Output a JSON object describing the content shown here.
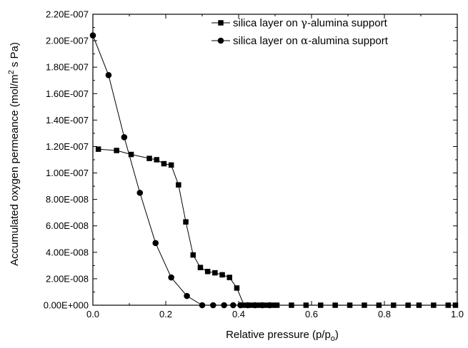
{
  "chart_data": {
    "type": "line",
    "xlabel": "Relative pressure (p/p",
    "xlabel_sub": "o",
    "xlabel_close": ")",
    "ylabel": "Accumulated oxygen permeance (mol/m",
    "ylabel_sup": "2",
    "ylabel_tail": " s Pa)",
    "xlim": [
      0.0,
      1.0
    ],
    "ylim": [
      0.0,
      2.2e-07
    ],
    "x_ticks": [
      {
        "v": 0.0,
        "label": "0.0"
      },
      {
        "v": 0.2,
        "label": "0.2"
      },
      {
        "v": 0.4,
        "label": "0.4"
      },
      {
        "v": 0.6,
        "label": "0.6"
      },
      {
        "v": 0.8,
        "label": "0.8"
      },
      {
        "v": 1.0,
        "label": "1.0"
      }
    ],
    "y_ticks": [
      {
        "v": 0.0,
        "label": "0.00E+000"
      },
      {
        "v": 2e-08,
        "label": "2.00E-008"
      },
      {
        "v": 4e-08,
        "label": "4.00E-008"
      },
      {
        "v": 6e-08,
        "label": "6.00E-008"
      },
      {
        "v": 8e-08,
        "label": "8.00E-008"
      },
      {
        "v": 1e-07,
        "label": "1.00E-007"
      },
      {
        "v": 1.2e-07,
        "label": "1.20E-007"
      },
      {
        "v": 1.4e-07,
        "label": "1.40E-007"
      },
      {
        "v": 1.6e-07,
        "label": "1.60E-007"
      },
      {
        "v": 1.8e-07,
        "label": "1.80E-007"
      },
      {
        "v": 2e-07,
        "label": "2.00E-007"
      },
      {
        "v": 2.2e-07,
        "label": "2.20E-007"
      }
    ],
    "grid": false,
    "legend_position": "top-right",
    "series": [
      {
        "name": "silica layer on γ-alumina support",
        "name_prefix": "silica layer on ",
        "name_symbol": "γ",
        "name_suffix": "-alumina support",
        "marker": "square",
        "x": [
          0.015,
          0.065,
          0.105,
          0.155,
          0.175,
          0.195,
          0.215,
          0.235,
          0.255,
          0.275,
          0.295,
          0.315,
          0.335,
          0.355,
          0.375,
          0.395,
          0.415,
          0.435,
          0.455,
          0.475,
          0.495,
          0.505,
          0.545,
          0.585,
          0.625,
          0.665,
          0.705,
          0.745,
          0.785,
          0.825,
          0.865,
          0.895,
          0.935,
          0.975,
          0.995
        ],
        "y": [
          1.18e-07,
          1.17e-07,
          1.14e-07,
          1.11e-07,
          1.1e-07,
          1.07e-07,
          1.06e-07,
          9.1e-08,
          6.3e-08,
          3.8e-08,
          2.85e-08,
          2.55e-08,
          2.45e-08,
          2.3e-08,
          2.1e-08,
          1.3e-08,
          0.0,
          0.0,
          0.0,
          0.0,
          0.0,
          0.0,
          0.0,
          0.0,
          0.0,
          0.0,
          0.0,
          0.0,
          0.0,
          0.0,
          0.0,
          0.0,
          0.0,
          0.0,
          0.0
        ]
      },
      {
        "name": "silica layer on α-alumina support",
        "name_prefix": "silica layer on ",
        "name_symbol": "α",
        "name_suffix": "-alumina support",
        "marker": "circle",
        "x": [
          0.0,
          0.043,
          0.086,
          0.129,
          0.172,
          0.215,
          0.258,
          0.3,
          0.33,
          0.36,
          0.385,
          0.405,
          0.425,
          0.445,
          0.465,
          0.485
        ],
        "y": [
          2.04e-07,
          1.74e-07,
          1.27e-07,
          8.5e-08,
          4.7e-08,
          2.1e-08,
          7e-09,
          0.0,
          0.0,
          0.0,
          0.0,
          0.0,
          0.0,
          0.0,
          0.0,
          0.0
        ]
      }
    ]
  }
}
